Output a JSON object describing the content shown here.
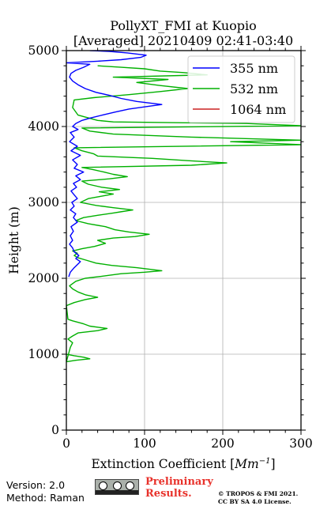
{
  "chart_data": {
    "type": "line",
    "title_line1": "PollyXT_FMI at Kuopio",
    "title_line2": "[Averaged] 20210409 02:41-03:40",
    "xlabel": "Extinction Coefficient [",
    "xlabel_unit": "Mm",
    "xlabel_exp": "−1",
    "xlabel_end": "]",
    "ylabel": "Height (m)",
    "xlim": [
      0,
      300
    ],
    "ylim": [
      0,
      5000
    ],
    "xticks": [
      0,
      100,
      200,
      300
    ],
    "xtick_labels": [
      "0",
      "100",
      "200",
      "300"
    ],
    "yticks": [
      0,
      1000,
      2000,
      3000,
      4000,
      5000
    ],
    "ytick_labels": [
      "0",
      "1000",
      "2000",
      "3000",
      "4000",
      "5000"
    ],
    "grid": true,
    "legend_position": "top-right",
    "series": [
      {
        "name": "355 nm",
        "color": "#0000ff",
        "points": [
          [
            3,
            2020
          ],
          [
            5,
            2080
          ],
          [
            10,
            2140
          ],
          [
            14,
            2180
          ],
          [
            18,
            2220
          ],
          [
            12,
            2260
          ],
          [
            16,
            2300
          ],
          [
            10,
            2350
          ],
          [
            8,
            2400
          ],
          [
            4,
            2450
          ],
          [
            8,
            2500
          ],
          [
            5,
            2560
          ],
          [
            9,
            2620
          ],
          [
            6,
            2680
          ],
          [
            14,
            2740
          ],
          [
            9,
            2800
          ],
          [
            12,
            2850
          ],
          [
            5,
            2900
          ],
          [
            10,
            2950
          ],
          [
            7,
            3000
          ],
          [
            14,
            3050
          ],
          [
            10,
            3100
          ],
          [
            6,
            3150
          ],
          [
            13,
            3200
          ],
          [
            9,
            3250
          ],
          [
            18,
            3300
          ],
          [
            12,
            3350
          ],
          [
            22,
            3400
          ],
          [
            10,
            3450
          ],
          [
            14,
            3500
          ],
          [
            8,
            3560
          ],
          [
            18,
            3620
          ],
          [
            6,
            3680
          ],
          [
            14,
            3740
          ],
          [
            4,
            3800
          ],
          [
            10,
            3860
          ],
          [
            5,
            3920
          ],
          [
            15,
            3960
          ],
          [
            8,
            4000
          ],
          [
            12,
            4040
          ],
          [
            20,
            4080
          ],
          [
            30,
            4110
          ],
          [
            46,
            4150
          ],
          [
            62,
            4190
          ],
          [
            80,
            4230
          ],
          [
            108,
            4270
          ],
          [
            122,
            4290
          ],
          [
            90,
            4330
          ],
          [
            70,
            4370
          ],
          [
            55,
            4410
          ],
          [
            38,
            4450
          ],
          [
            24,
            4500
          ],
          [
            15,
            4550
          ],
          [
            8,
            4600
          ],
          [
            4,
            4650
          ],
          [
            6,
            4700
          ],
          [
            12,
            4740
          ],
          [
            22,
            4780
          ],
          [
            30,
            4820
          ],
          [
            0,
            4840
          ],
          [
            40,
            4860
          ],
          [
            70,
            4880
          ],
          [
            95,
            4910
          ],
          [
            102,
            4940
          ],
          [
            78,
            4970
          ],
          [
            55,
            4990
          ],
          [
            30,
            5000
          ]
        ]
      },
      {
        "name": "532 nm",
        "color": "#00b000",
        "points": [
          [
            0,
            1000
          ],
          [
            10,
            980
          ],
          [
            22,
            960
          ],
          [
            30,
            940
          ],
          [
            12,
            920
          ],
          [
            0,
            900
          ],
          [
            5,
            1090
          ],
          [
            8,
            1150
          ],
          [
            2,
            1200
          ],
          [
            8,
            1240
          ],
          [
            15,
            1280
          ],
          [
            40,
            1310
          ],
          [
            52,
            1340
          ],
          [
            30,
            1370
          ],
          [
            22,
            1400
          ],
          [
            8,
            1440
          ],
          [
            2,
            1460
          ],
          [
            0,
            1640
          ],
          [
            10,
            1680
          ],
          [
            24,
            1720
          ],
          [
            40,
            1750
          ],
          [
            25,
            1780
          ],
          [
            15,
            1820
          ],
          [
            8,
            1860
          ],
          [
            4,
            1900
          ],
          [
            12,
            1960
          ],
          [
            24,
            2000
          ],
          [
            40,
            2020
          ],
          [
            70,
            2060
          ],
          [
            100,
            2080
          ],
          [
            122,
            2100
          ],
          [
            90,
            2140
          ],
          [
            58,
            2170
          ],
          [
            38,
            2200
          ],
          [
            25,
            2240
          ],
          [
            15,
            2270
          ],
          [
            10,
            2300
          ],
          [
            14,
            2330
          ],
          [
            8,
            2360
          ],
          [
            20,
            2390
          ],
          [
            36,
            2420
          ],
          [
            50,
            2460
          ],
          [
            40,
            2500
          ],
          [
            60,
            2530
          ],
          [
            88,
            2550
          ],
          [
            106,
            2580
          ],
          [
            80,
            2610
          ],
          [
            62,
            2640
          ],
          [
            50,
            2680
          ],
          [
            28,
            2720
          ],
          [
            12,
            2760
          ],
          [
            22,
            2800
          ],
          [
            40,
            2830
          ],
          [
            60,
            2860
          ],
          [
            72,
            2880
          ],
          [
            85,
            2900
          ],
          [
            60,
            2930
          ],
          [
            38,
            2960
          ],
          [
            18,
            3000
          ],
          [
            28,
            3050
          ],
          [
            44,
            3080
          ],
          [
            60,
            3110
          ],
          [
            42,
            3140
          ],
          [
            68,
            3170
          ],
          [
            45,
            3200
          ],
          [
            28,
            3240
          ],
          [
            20,
            3280
          ],
          [
            55,
            3310
          ],
          [
            78,
            3340
          ],
          [
            60,
            3370
          ],
          [
            48,
            3400
          ],
          [
            35,
            3430
          ],
          [
            20,
            3460
          ],
          [
            160,
            3490
          ],
          [
            205,
            3520
          ],
          [
            155,
            3550
          ],
          [
            110,
            3580
          ],
          [
            40,
            3610
          ],
          [
            35,
            3640
          ],
          [
            20,
            3680
          ],
          [
            10,
            3720
          ],
          [
            300,
            3760
          ],
          [
            210,
            3800
          ],
          [
            300,
            3820
          ],
          [
            160,
            3860
          ],
          [
            60,
            3900
          ],
          [
            30,
            3940
          ],
          [
            20,
            3980
          ],
          [
            300,
            4010
          ],
          [
            230,
            4040
          ],
          [
            60,
            4060
          ],
          [
            40,
            4080
          ],
          [
            15,
            4150
          ],
          [
            8,
            4250
          ],
          [
            10,
            4350
          ],
          [
            35,
            4380
          ],
          [
            80,
            4420
          ],
          [
            120,
            4460
          ],
          [
            155,
            4500
          ],
          [
            120,
            4540
          ],
          [
            90,
            4580
          ],
          [
            130,
            4620
          ],
          [
            60,
            4650
          ],
          [
            180,
            4680
          ],
          [
            150,
            4710
          ],
          [
            120,
            4730
          ],
          [
            100,
            4760
          ],
          [
            70,
            4780
          ],
          [
            40,
            4800
          ]
        ]
      },
      {
        "name": "1064 nm",
        "color": "#cc2222",
        "points": []
      }
    ]
  },
  "footer": {
    "version": "Version: 2.0",
    "method": "Method: Raman",
    "preliminary_line1": "Preliminary",
    "preliminary_line2": "Results.",
    "copyright_line1": "© TROPOS & FMI 2021.",
    "copyright_line2": "CC BY SA 4.0 License."
  }
}
